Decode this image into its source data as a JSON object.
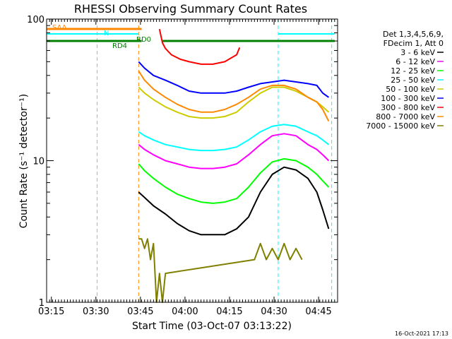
{
  "chart_data": {
    "type": "line",
    "title": "RHESSI Observing Summary Count Rates",
    "xlabel": "Start Time (03-Oct-07 03:13:22)",
    "ylabel": "Count Rate (s⁻¹ detector⁻¹)",
    "y_scale": "log",
    "ylim": [
      1,
      100
    ],
    "xlim_minutes": [
      0,
      98
    ],
    "x_ticks": [
      {
        "label": "03:15",
        "minute": 1.6
      },
      {
        "label": "03:30",
        "minute": 16.6
      },
      {
        "label": "03:45",
        "minute": 31.6
      },
      {
        "label": "04:00",
        "minute": 46.6
      },
      {
        "label": "04:15",
        "minute": 61.6
      },
      {
        "label": "04:30",
        "minute": 76.6
      },
      {
        "label": "04:45",
        "minute": 91.6
      }
    ],
    "y_tick_labels": [
      {
        "label": "1",
        "value": 1
      },
      {
        "label": "10",
        "value": 10
      },
      {
        "label": "100",
        "value": 100
      }
    ],
    "legend": {
      "placement": "right",
      "header": [
        "Det 1,3,4,5,6,9,",
        "FDecim 1, Att 0"
      ]
    },
    "series": [
      {
        "name": "3 - 6 keV",
        "color": "#000000",
        "x": [
          31,
          33,
          36,
          40,
          44,
          48,
          52,
          56,
          60,
          64,
          68,
          72,
          76,
          80,
          84,
          88,
          91,
          93,
          95
        ],
        "y": [
          6,
          5.5,
          4.8,
          4.2,
          3.6,
          3.2,
          3,
          3,
          3,
          3.3,
          4,
          6,
          8,
          9,
          8.6,
          7.5,
          6,
          4.5,
          3.3
        ]
      },
      {
        "name": "6 - 12 keV",
        "color": "#ff00ff",
        "x": [
          31,
          33,
          36,
          40,
          44,
          48,
          52,
          56,
          60,
          64,
          68,
          72,
          76,
          80,
          84,
          88,
          91,
          93,
          95
        ],
        "y": [
          13,
          12,
          11,
          10,
          9.5,
          9,
          8.8,
          8.8,
          9,
          9.5,
          11,
          13,
          15,
          15.5,
          15,
          13,
          12,
          11,
          10
        ]
      },
      {
        "name": "12 - 25 keV",
        "color": "#00ff00",
        "x": [
          31,
          33,
          36,
          40,
          44,
          48,
          52,
          56,
          60,
          64,
          68,
          72,
          76,
          80,
          84,
          88,
          91,
          93,
          95
        ],
        "y": [
          9.5,
          8.5,
          7.5,
          6.5,
          5.8,
          5.4,
          5.1,
          5,
          5.1,
          5.4,
          6.5,
          8.2,
          9.8,
          10.3,
          10,
          9,
          8,
          7.2,
          6.5
        ]
      },
      {
        "name": "25 - 50 keV",
        "color": "#00ffff",
        "x": [
          31,
          33,
          36,
          40,
          44,
          48,
          52,
          56,
          60,
          64,
          68,
          72,
          76,
          80,
          84,
          88,
          91,
          93,
          95
        ],
        "y": [
          16,
          15,
          14,
          13,
          12.5,
          12,
          11.8,
          11.8,
          12,
          12.5,
          14,
          16,
          17.5,
          18,
          17.5,
          16,
          15,
          14,
          13
        ]
      },
      {
        "name": "50 - 100 keV",
        "color": "#cccc00",
        "x": [
          31,
          33,
          36,
          40,
          44,
          48,
          52,
          56,
          60,
          64,
          68,
          72,
          76,
          80,
          84,
          88,
          91,
          93,
          95
        ],
        "y": [
          33,
          30,
          27,
          24,
          22,
          20.5,
          20,
          20,
          20.5,
          22,
          26,
          30,
          33,
          33,
          31,
          28,
          26,
          24,
          22
        ]
      },
      {
        "name": "100 - 300 keV",
        "color": "#0000ff",
        "x": [
          31,
          33,
          36,
          40,
          44,
          48,
          52,
          56,
          60,
          64,
          68,
          72,
          76,
          80,
          84,
          88,
          91,
          93,
          95
        ],
        "y": [
          50,
          45,
          40,
          37,
          34,
          31,
          30,
          30,
          30,
          31,
          33,
          35,
          36,
          37,
          36,
          35,
          34,
          30,
          28
        ]
      },
      {
        "name": "300 - 800 keV",
        "color": "#ff0000",
        "x": [
          38,
          39,
          40,
          42,
          45,
          48,
          52,
          56,
          60,
          64,
          65
        ],
        "y": [
          85,
          68,
          62,
          56,
          52,
          50,
          48,
          48,
          50,
          56,
          63
        ]
      },
      {
        "name": "800 - 7000 keV",
        "color": "#ff8800",
        "x": [
          31,
          33,
          36,
          40,
          44,
          48,
          52,
          56,
          60,
          64,
          68,
          72,
          76,
          80,
          84,
          88,
          91,
          93,
          95
        ],
        "y": [
          43,
          37,
          32,
          28,
          25,
          23,
          22,
          22,
          23,
          25,
          28,
          32,
          34,
          34,
          32,
          28,
          26,
          23,
          19
        ]
      },
      {
        "name": "7000 - 15000 keV",
        "color": "#808000",
        "x": [
          31,
          32,
          33,
          34,
          35,
          36,
          37,
          38,
          39,
          40,
          70,
          72,
          74,
          76,
          78,
          80,
          82,
          84,
          86
        ],
        "y": [
          2.8,
          2.8,
          2.4,
          2.8,
          2,
          2.6,
          1,
          1.6,
          1,
          1.6,
          2,
          2.6,
          2,
          2.4,
          2,
          2.6,
          2,
          2.4,
          2
        ]
      }
    ],
    "flags": [
      {
        "label": "SAA",
        "color": "#ff8800",
        "segments": [
          [
            -2,
            32
          ]
        ]
      },
      {
        "label": "N",
        "color": "#00ffff",
        "segments": [
          [
            -1,
            31
          ],
          [
            78,
            97
          ]
        ]
      },
      {
        "label": "RD4",
        "color": "#008000",
        "segments": [
          [
            -2,
            32
          ]
        ]
      },
      {
        "label": "RD0",
        "color": "#008000",
        "segments": [
          [
            39,
            97
          ]
        ]
      }
    ],
    "vertical_markers": [
      {
        "color": "#ff8800",
        "minute": 31
      },
      {
        "color": "#00ffff",
        "minute": 17
      },
      {
        "color": "#00ffff",
        "minute": 78
      },
      {
        "color": "#00ffff",
        "minute": 96
      }
    ],
    "grid": false
  },
  "footer": {
    "date": "16-Oct-2021 17:13"
  }
}
